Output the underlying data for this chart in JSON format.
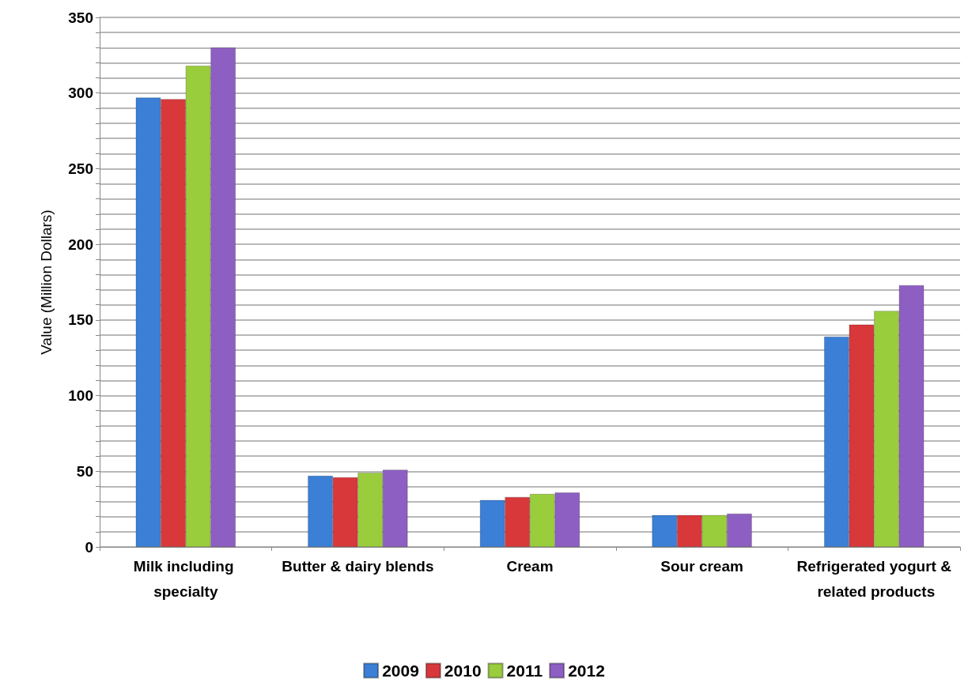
{
  "chart_data": {
    "type": "bar",
    "ylabel": "Value (Million Dollars)",
    "categories": [
      "Milk including specialty",
      "Butter & dairy blends",
      "Cream",
      "Sour cream",
      "Refrigerated yogurt & related products"
    ],
    "series": [
      {
        "name": "2009",
        "color": "#3b7fd6",
        "values": [
          297,
          47,
          31,
          21,
          139
        ]
      },
      {
        "name": "2010",
        "color": "#d8383a",
        "values": [
          296,
          46,
          33,
          21,
          147
        ]
      },
      {
        "name": "2011",
        "color": "#9acd3c",
        "values": [
          318,
          49,
          35,
          21,
          156
        ]
      },
      {
        "name": "2012",
        "color": "#8d5fc2",
        "values": [
          330,
          51,
          36,
          22,
          173
        ]
      }
    ],
    "ylim": [
      0,
      350
    ],
    "yticks": [
      0,
      {
        "value": 10,
        "label": null
      },
      {
        "value": 20,
        "label": null
      },
      {
        "value": 30,
        "label": null
      },
      {
        "value": 40,
        "label": null
      },
      50,
      {
        "value": 60,
        "label": null
      },
      {
        "value": 70,
        "label": null
      },
      {
        "value": 80,
        "label": null
      },
      {
        "value": 90,
        "label": null
      },
      100,
      {
        "value": 110,
        "label": null
      },
      {
        "value": 120,
        "label": null
      },
      {
        "value": 130,
        "label": null
      },
      {
        "value": 140,
        "label": null
      },
      150,
      {
        "value": 160,
        "label": null
      },
      {
        "value": 170,
        "label": null
      },
      {
        "value": 180,
        "label": null
      },
      {
        "value": 190,
        "label": null
      },
      200,
      {
        "value": 210,
        "label": null
      },
      {
        "value": 220,
        "label": null
      },
      {
        "value": 230,
        "label": null
      },
      {
        "value": 240,
        "label": null
      },
      250,
      {
        "value": 260,
        "label": null
      },
      {
        "value": 270,
        "label": null
      },
      {
        "value": 280,
        "label": null
      },
      {
        "value": 290,
        "label": null
      },
      300,
      {
        "value": 310,
        "label": null
      },
      {
        "value": 320,
        "label": null
      },
      {
        "value": 330,
        "label": null
      },
      {
        "value": 340,
        "label": null
      },
      350
    ],
    "grid": "y",
    "legend": "bottom"
  }
}
